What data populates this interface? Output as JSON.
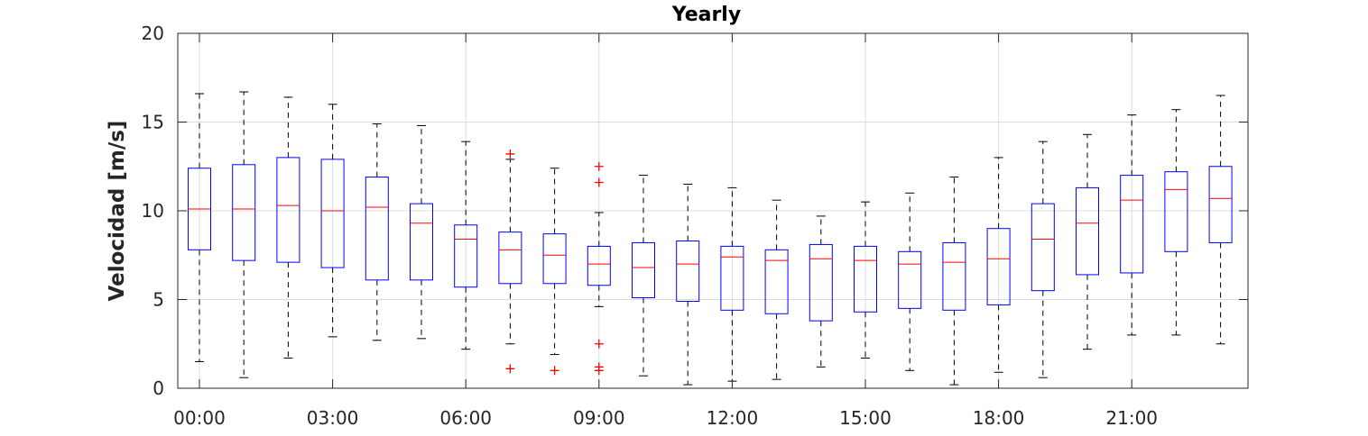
{
  "chart_data": {
    "type": "box",
    "title": "Yearly",
    "xlabel": "",
    "ylabel": "Velocidad [m/s]",
    "ylim": [
      0,
      20
    ],
    "yticks": [
      "0",
      "5",
      "10",
      "15",
      "20"
    ],
    "grid": true,
    "xtick_labels": [
      "00:00",
      "03:00",
      "06:00",
      "09:00",
      "12:00",
      "15:00",
      "18:00",
      "21:00"
    ],
    "colors": {
      "box": "#0000ff",
      "median": "#ff0000",
      "whisker": "#000000",
      "outlier": "#ff0000",
      "grid": "#dcdcdc"
    },
    "categories": [
      "00:00",
      "01:00",
      "02:00",
      "03:00",
      "04:00",
      "05:00",
      "06:00",
      "07:00",
      "08:00",
      "09:00",
      "10:00",
      "11:00",
      "12:00",
      "13:00",
      "14:00",
      "15:00",
      "16:00",
      "17:00",
      "18:00",
      "19:00",
      "20:00",
      "21:00",
      "22:00",
      "23:00"
    ],
    "boxes": [
      {
        "min": 1.5,
        "q1": 7.8,
        "median": 10.1,
        "q3": 12.4,
        "max": 16.6,
        "outliers": []
      },
      {
        "min": 0.6,
        "q1": 7.2,
        "median": 10.1,
        "q3": 12.6,
        "max": 16.7,
        "outliers": []
      },
      {
        "min": 1.7,
        "q1": 7.1,
        "median": 10.3,
        "q3": 13.0,
        "max": 16.4,
        "outliers": []
      },
      {
        "min": 2.9,
        "q1": 6.8,
        "median": 10.0,
        "q3": 12.9,
        "max": 16.0,
        "outliers": []
      },
      {
        "min": 2.7,
        "q1": 6.1,
        "median": 10.2,
        "q3": 11.9,
        "max": 14.9,
        "outliers": []
      },
      {
        "min": 2.8,
        "q1": 6.1,
        "median": 9.3,
        "q3": 10.4,
        "max": 14.8,
        "outliers": []
      },
      {
        "min": 2.2,
        "q1": 5.7,
        "median": 8.4,
        "q3": 9.2,
        "max": 13.9,
        "outliers": []
      },
      {
        "min": 2.5,
        "q1": 5.9,
        "median": 7.8,
        "q3": 8.8,
        "max": 12.9,
        "outliers": [
          13.2,
          1.1
        ]
      },
      {
        "min": 1.9,
        "q1": 5.9,
        "median": 7.5,
        "q3": 8.7,
        "max": 12.4,
        "outliers": [
          1.0
        ]
      },
      {
        "min": 4.6,
        "q1": 5.8,
        "median": 7.0,
        "q3": 8.0,
        "max": 9.9,
        "outliers": [
          12.5,
          11.6,
          2.5,
          1.2,
          1.0
        ]
      },
      {
        "min": 0.7,
        "q1": 5.1,
        "median": 6.8,
        "q3": 8.2,
        "max": 12.0,
        "outliers": []
      },
      {
        "min": 0.2,
        "q1": 4.9,
        "median": 7.0,
        "q3": 8.3,
        "max": 11.5,
        "outliers": []
      },
      {
        "min": 0.4,
        "q1": 4.4,
        "median": 7.4,
        "q3": 8.0,
        "max": 11.3,
        "outliers": []
      },
      {
        "min": 0.5,
        "q1": 4.2,
        "median": 7.2,
        "q3": 7.8,
        "max": 10.6,
        "outliers": []
      },
      {
        "min": 1.2,
        "q1": 3.8,
        "median": 7.3,
        "q3": 8.1,
        "max": 9.7,
        "outliers": []
      },
      {
        "min": 1.7,
        "q1": 4.3,
        "median": 7.2,
        "q3": 8.0,
        "max": 10.5,
        "outliers": []
      },
      {
        "min": 1.0,
        "q1": 4.5,
        "median": 7.0,
        "q3": 7.7,
        "max": 11.0,
        "outliers": []
      },
      {
        "min": 0.2,
        "q1": 4.4,
        "median": 7.1,
        "q3": 8.2,
        "max": 11.9,
        "outliers": []
      },
      {
        "min": 0.9,
        "q1": 4.7,
        "median": 7.3,
        "q3": 9.0,
        "max": 13.0,
        "outliers": []
      },
      {
        "min": 0.6,
        "q1": 5.5,
        "median": 8.4,
        "q3": 10.4,
        "max": 13.9,
        "outliers": []
      },
      {
        "min": 2.2,
        "q1": 6.4,
        "median": 9.3,
        "q3": 11.3,
        "max": 14.3,
        "outliers": []
      },
      {
        "min": 3.0,
        "q1": 6.5,
        "median": 10.6,
        "q3": 12.0,
        "max": 15.4,
        "outliers": []
      },
      {
        "min": 3.0,
        "q1": 7.7,
        "median": 11.2,
        "q3": 12.2,
        "max": 15.7,
        "outliers": []
      },
      {
        "min": 2.5,
        "q1": 8.2,
        "median": 10.7,
        "q3": 12.5,
        "max": 16.5,
        "outliers": []
      }
    ]
  }
}
